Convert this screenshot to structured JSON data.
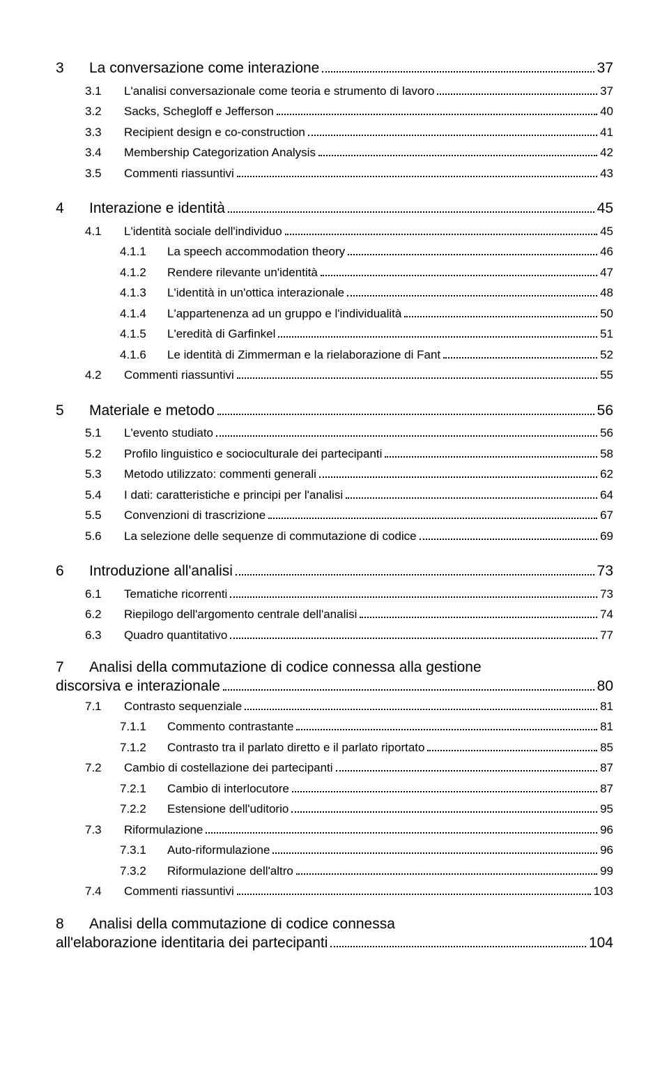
{
  "toc": [
    {
      "level": 1,
      "num": "3",
      "label": "La conversazione come interazione",
      "page": "37"
    },
    {
      "level": 2,
      "num": "3.1",
      "label": "L'analisi conversazionale come teoria e strumento di lavoro",
      "page": "37"
    },
    {
      "level": 2,
      "num": "3.2",
      "label": "Sacks, Schegloff e Jefferson",
      "page": "40"
    },
    {
      "level": 2,
      "num": "3.3",
      "label": "Recipient design e co-construction",
      "page": "41"
    },
    {
      "level": 2,
      "num": "3.4",
      "label": "Membership Categorization Analysis",
      "page": "42"
    },
    {
      "level": 2,
      "num": "3.5",
      "label": "Commenti riassuntivi",
      "page": "43"
    },
    {
      "level": 1,
      "num": "4",
      "label": "Interazione e identità",
      "page": "45"
    },
    {
      "level": 2,
      "num": "4.1",
      "label": "L'identità sociale dell'individuo",
      "page": "45"
    },
    {
      "level": 3,
      "num": "4.1.1",
      "label": "La speech accommodation theory",
      "page": "46"
    },
    {
      "level": 3,
      "num": "4.1.2",
      "label": "Rendere rilevante un'identità",
      "page": "47"
    },
    {
      "level": 3,
      "num": "4.1.3",
      "label": "L'identità in un'ottica interazionale",
      "page": "48"
    },
    {
      "level": 3,
      "num": "4.1.4",
      "label": "L'appartenenza ad un gruppo e l'individualità",
      "page": "50"
    },
    {
      "level": 3,
      "num": "4.1.5",
      "label": "L'eredità di Garfinkel",
      "page": "51"
    },
    {
      "level": 3,
      "num": "4.1.6",
      "label": "Le identità di Zimmerman e la rielaborazione di Fant",
      "page": "52"
    },
    {
      "level": 2,
      "num": "4.2",
      "label": "Commenti riassuntivi",
      "page": "55"
    },
    {
      "level": 1,
      "num": "5",
      "label": "Materiale e metodo",
      "page": "56"
    },
    {
      "level": 2,
      "num": "5.1",
      "label": "L'evento studiato",
      "page": "56"
    },
    {
      "level": 2,
      "num": "5.2",
      "label": "Profilo linguistico e socioculturale dei partecipanti",
      "page": "58"
    },
    {
      "level": 2,
      "num": "5.3",
      "label": "Metodo utilizzato: commenti generali",
      "page": "62"
    },
    {
      "level": 2,
      "num": "5.4",
      "label": "I dati: caratteristiche e principi per l'analisi",
      "page": "64"
    },
    {
      "level": 2,
      "num": "5.5",
      "label": "Convenzioni di trascrizione",
      "page": "67"
    },
    {
      "level": 2,
      "num": "5.6",
      "label": "La selezione delle sequenze di commutazione di codice",
      "page": "69"
    },
    {
      "level": 1,
      "num": "6",
      "label": "Introduzione all'analisi",
      "page": "73"
    },
    {
      "level": 2,
      "num": "6.1",
      "label": "Tematiche ricorrenti",
      "page": "73"
    },
    {
      "level": 2,
      "num": "6.2",
      "label": "Riepilogo dell'argomento centrale dell'analisi",
      "page": "74"
    },
    {
      "level": 2,
      "num": "6.3",
      "label": "Quadro quantitativo",
      "page": "77"
    },
    {
      "level": 1,
      "num": "7",
      "label_line1": "Analisi della commutazione di codice connessa alla gestione",
      "label_line2": "discorsiva e interazionale",
      "page": "80",
      "multiline": true
    },
    {
      "level": 2,
      "num": "7.1",
      "label": "Contrasto sequenziale",
      "page": "81"
    },
    {
      "level": 3,
      "num": "7.1.1",
      "label": "Commento contrastante",
      "page": "81"
    },
    {
      "level": 3,
      "num": "7.1.2",
      "label": "Contrasto tra il parlato diretto e il parlato riportato",
      "page": "85"
    },
    {
      "level": 2,
      "num": "7.2",
      "label": "Cambio di costellazione dei partecipanti",
      "page": "87"
    },
    {
      "level": 3,
      "num": "7.2.1",
      "label": "Cambio di interlocutore",
      "page": "87"
    },
    {
      "level": 3,
      "num": "7.2.2",
      "label": "Estensione dell'uditorio",
      "page": "95"
    },
    {
      "level": 2,
      "num": "7.3",
      "label": "Riformulazione",
      "page": "96"
    },
    {
      "level": 3,
      "num": "7.3.1",
      "label": "Auto-riformulazione",
      "page": "96"
    },
    {
      "level": 3,
      "num": "7.3.2",
      "label": "Riformulazione dell'altro",
      "page": "99"
    },
    {
      "level": 2,
      "num": "7.4",
      "label": "Commenti riassuntivi",
      "page": "103"
    },
    {
      "level": 1,
      "num": "8",
      "label_line1": "Analisi della commutazione di codice connessa",
      "label_line2": "all'elaborazione identitaria dei partecipanti",
      "page": "104",
      "multiline": true
    }
  ]
}
